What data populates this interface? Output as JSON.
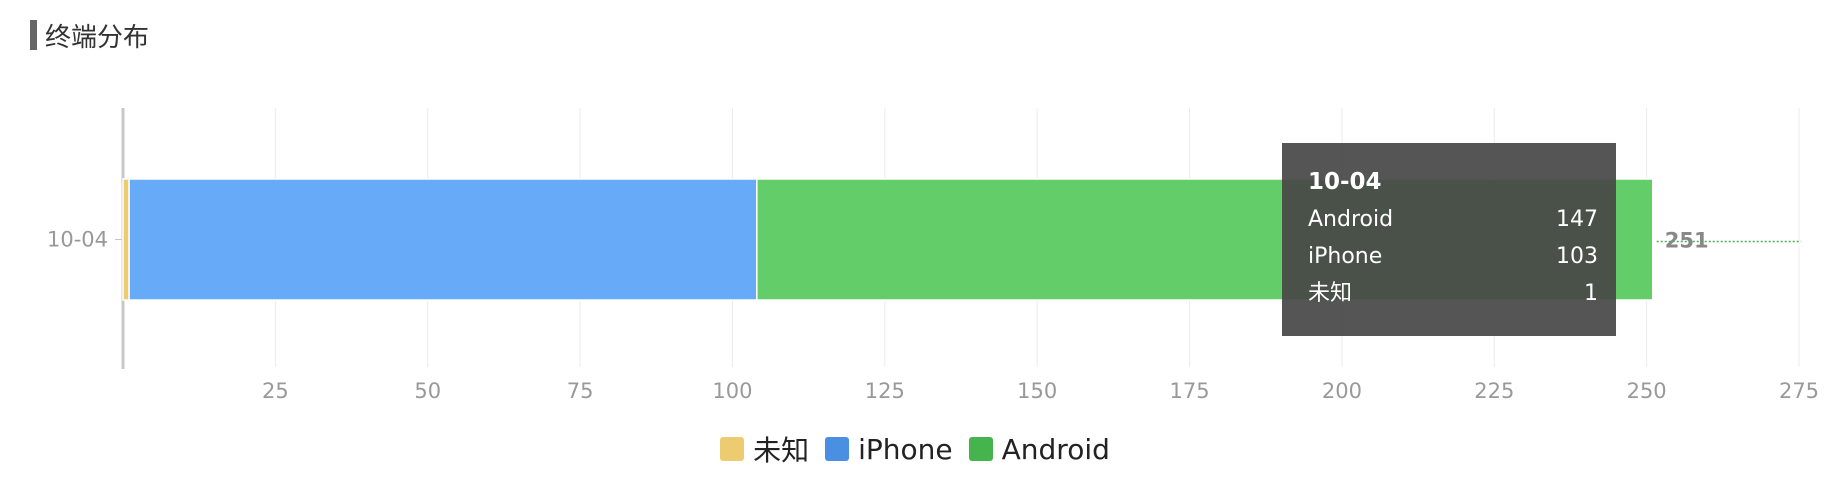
{
  "title": "终端分布",
  "colors": {
    "unknown": "#ECCB71",
    "iphone": "#66AAF8",
    "android": "#62CD69",
    "legend_unknown": "#ECCB71",
    "legend_iphone": "#4A90E2",
    "legend_android": "#45B44D"
  },
  "chart_data": {
    "type": "bar",
    "orientation": "horizontal",
    "stacked": true,
    "categories": [
      "10-04"
    ],
    "series": [
      {
        "name": "未知",
        "values": [
          1
        ],
        "color": "#ECCB71"
      },
      {
        "name": "iPhone",
        "values": [
          103
        ],
        "color": "#66AAF8"
      },
      {
        "name": "Android",
        "values": [
          147
        ],
        "color": "#62CD69"
      }
    ],
    "total_labels": [
      251
    ],
    "xlim": [
      0,
      275
    ],
    "xticks": [
      25,
      50,
      75,
      100,
      125,
      150,
      175,
      200,
      225,
      250,
      275
    ],
    "grid": true,
    "legend_position": "bottom-center"
  },
  "tooltip": {
    "title": "10-04",
    "rows": [
      {
        "label": "Android",
        "value": "147"
      },
      {
        "label": "iPhone",
        "value": "103"
      },
      {
        "label": "未知",
        "value": "1"
      }
    ]
  },
  "legend": [
    {
      "label": "未知",
      "color": "#ECCB71"
    },
    {
      "label": "iPhone",
      "color": "#4A90E2"
    },
    {
      "label": "Android",
      "color": "#45B44D"
    }
  ]
}
